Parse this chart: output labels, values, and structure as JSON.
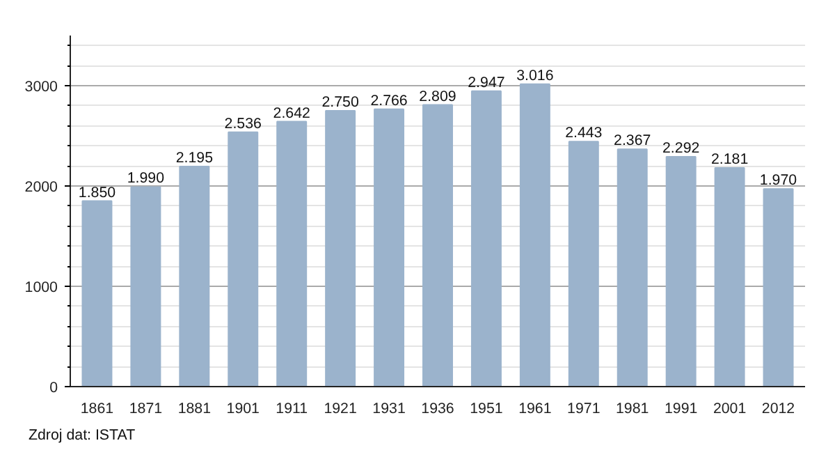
{
  "chart_data": {
    "type": "bar",
    "categories": [
      "1861",
      "1871",
      "1881",
      "1901",
      "1911",
      "1921",
      "1931",
      "1936",
      "1951",
      "1961",
      "1971",
      "1981",
      "1991",
      "2001",
      "2012"
    ],
    "values": [
      1850,
      1990,
      2195,
      2536,
      2642,
      2750,
      2766,
      2809,
      2947,
      3016,
      2443,
      2367,
      2292,
      2181,
      1970
    ],
    "value_labels": [
      "1.850",
      "1.990",
      "2.195",
      "2.536",
      "2.642",
      "2.750",
      "2.766",
      "2.809",
      "2.947",
      "3.016",
      "2.443",
      "2.367",
      "2.292",
      "2.181",
      "1.970"
    ],
    "color": "#9bb3cc",
    "ylim": [
      0,
      3500
    ],
    "yticks": [
      0,
      1000,
      2000,
      3000
    ],
    "grid": "y",
    "annotations": [
      "Zdroj dat: ISTAT"
    ]
  }
}
